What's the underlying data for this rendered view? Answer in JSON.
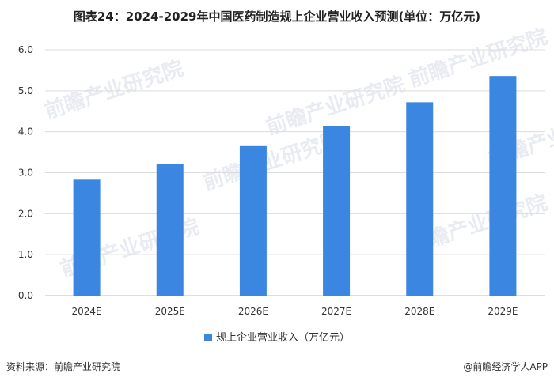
{
  "title": "图表24：2024-2029年中国医药制造规上企业营业收入预测(单位：万亿元)",
  "chart_data": {
    "type": "bar",
    "categories": [
      "2024E",
      "2025E",
      "2026E",
      "2027E",
      "2028E",
      "2029E"
    ],
    "series": [
      {
        "name": "规上企业营业收入（万亿元）",
        "values": [
          2.83,
          3.22,
          3.65,
          4.14,
          4.72,
          5.36
        ],
        "color": "#3a86e0"
      }
    ],
    "ylim": [
      0,
      6
    ],
    "yticks": [
      "0.0",
      "1.0",
      "2.0",
      "3.0",
      "4.0",
      "5.0",
      "6.0"
    ],
    "grid": true,
    "legend_position": "bottom"
  },
  "source": "资料来源：前瞻产业研究院",
  "brand": "@前瞻经济学人APP",
  "watermark": "前瞻产业研究院"
}
